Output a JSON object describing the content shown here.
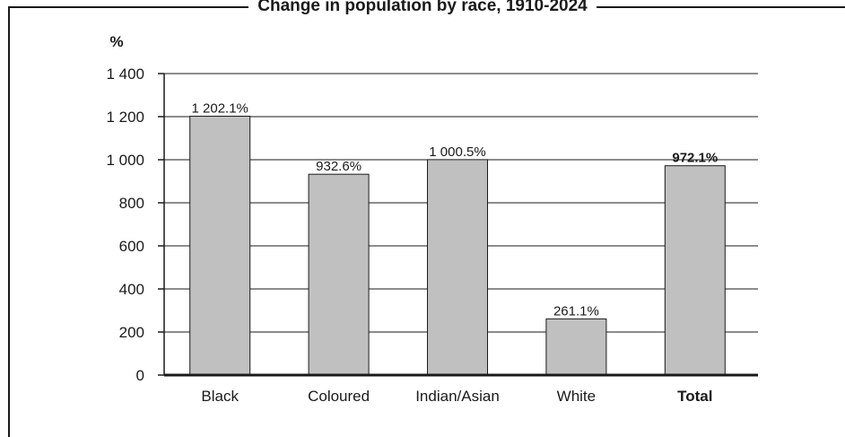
{
  "chart_data": {
    "type": "bar",
    "title": "Change in population by race, 1910-2024",
    "ylabel": "%",
    "xlabel": "",
    "ylim": [
      0,
      1400
    ],
    "yticks": [
      0,
      200,
      400,
      600,
      800,
      1000,
      1200,
      1400
    ],
    "ytick_labels": [
      "0",
      "200",
      "400",
      "600",
      "800",
      "1 000",
      "1 200",
      "1 400"
    ],
    "categories": [
      "Black",
      "Coloured",
      "Indian/Asian",
      "White",
      "Total"
    ],
    "values": [
      1202.1,
      932.6,
      1000.5,
      261.1,
      972.1
    ],
    "data_labels": [
      "1 202.1%",
      "932.6%",
      "1 000.5%",
      "261.1%",
      "972.1%"
    ],
    "bold_categories": [
      "Total"
    ],
    "grid": true,
    "colors": {
      "bar": "#c0c0c0",
      "outline": "#1a1a1a"
    }
  }
}
